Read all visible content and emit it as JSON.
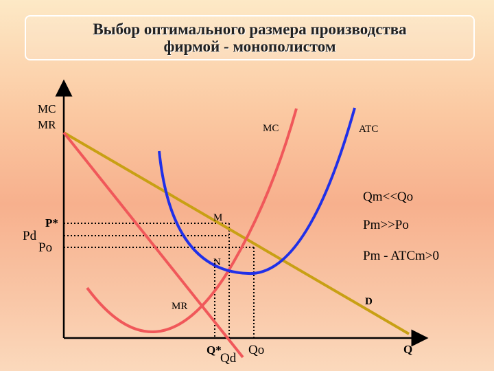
{
  "title": {
    "line1": "Выбор оптимального размера производства",
    "line2": "фирмой - монополистом"
  },
  "axis": {
    "y_label_1": "MC",
    "y_label_2": "MR",
    "x_label": "Q"
  },
  "curves": {
    "mc": "MC",
    "atc": "ATC",
    "mr": "MR",
    "demand": "D"
  },
  "points": {
    "m": "M",
    "n": "N"
  },
  "price_labels": {
    "pd": "Pd",
    "p_star": "P*",
    "po": "Po"
  },
  "quantity_labels": {
    "q_star": "Q*",
    "qd": "Qd",
    "qo": "Qo"
  },
  "notes": {
    "line1": "Qm<<Qo",
    "line2": "Pm>>Po",
    "line3": "Pm - ATCm>0"
  },
  "colors": {
    "demand": "#c8a014",
    "mc": "#f0585a",
    "mr": "#f0585a",
    "atc": "#2030e8",
    "axis": "#000000"
  }
}
